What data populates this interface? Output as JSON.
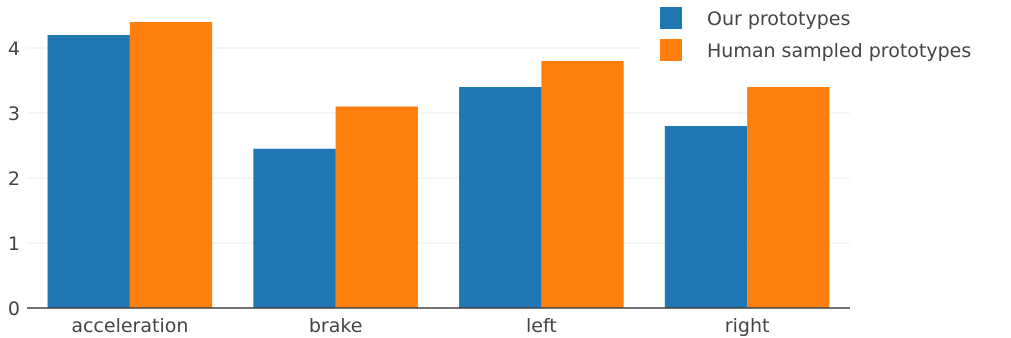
{
  "chart_data": {
    "type": "bar",
    "title": "",
    "xlabel": "",
    "ylabel": "",
    "categories": [
      "acceleration",
      "brake",
      "left",
      "right"
    ],
    "series": [
      {
        "name": "Our prototypes",
        "color": "#1f77b4",
        "values": [
          4.2,
          2.45,
          3.4,
          2.8
        ]
      },
      {
        "name": "Human sampled prototypes",
        "color": "#ff7f0e",
        "values": [
          4.4,
          3.1,
          3.8,
          3.4
        ]
      }
    ],
    "ylim": [
      0,
      4.5
    ],
    "yticks": [
      0,
      1,
      2,
      3,
      4
    ],
    "grid": true,
    "legend_position": "top-right"
  }
}
